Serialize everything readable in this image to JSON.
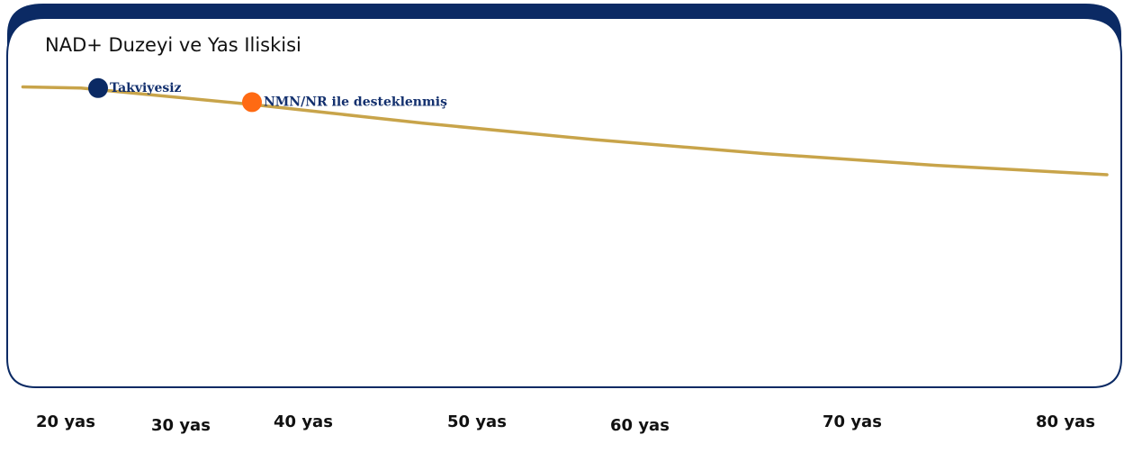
{
  "chart_data": {
    "type": "line",
    "title": "NAD+ Duzeyi ve Yas Iliskisi",
    "x_ticks": [
      "20 yas",
      "30 yas",
      "40 yas",
      "50 yas",
      "60 yas",
      "70 yas",
      "80 yas"
    ],
    "series": [
      {
        "x": [
          20,
          30,
          40,
          50,
          60,
          70,
          80
        ],
        "y": [
          97,
          90,
          82,
          75,
          69,
          64,
          60
        ]
      }
    ],
    "annotations": [
      {
        "label": "Takviyesiz",
        "x": 21,
        "y": 97,
        "color": "#0b2a64"
      },
      {
        "label": "NMN/NR ile desteklenmiş",
        "x": 30,
        "y": 91,
        "color": "#ff6a13"
      }
    ],
    "line_color": "#c8a44a",
    "frame_color": "#0b2a64",
    "label_color": "#13306e",
    "ylim": [
      0,
      100
    ],
    "grid": false
  }
}
